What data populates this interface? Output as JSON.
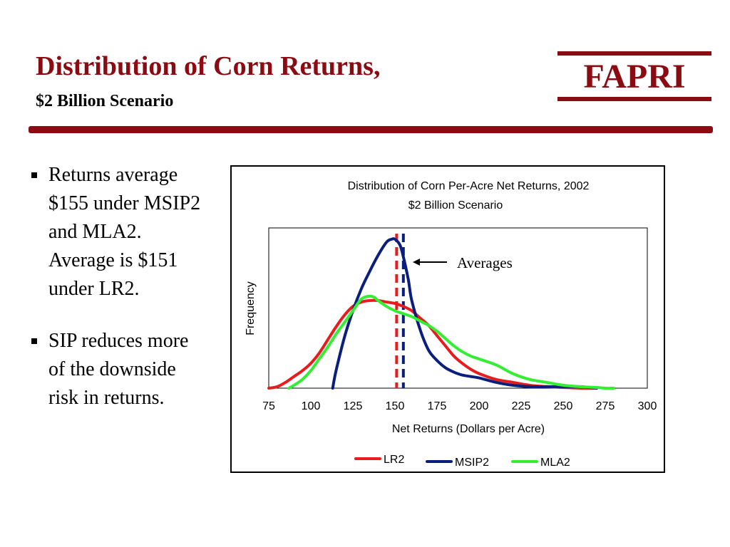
{
  "slide": {
    "title": "Distribution of Corn Returns,",
    "subtitle": "$2 Billion Scenario",
    "logo": "FAPRI"
  },
  "bullets": [
    "Returns average $155 under MSIP2 and MLA2. Average is $151 under LR2.",
    "SIP reduces more of the downside risk in returns."
  ],
  "colors": {
    "brand": "#8b0b12",
    "LR2": "#e81c1c",
    "MSIP2": "#0a1f7d",
    "MLA2": "#33ee33"
  },
  "chart_data": {
    "type": "line",
    "title": "Distribution of Corn Per-Acre Net Returns, 2002",
    "subtitle": "$2 Billion Scenario",
    "xlabel": "Net Returns (Dollars per Acre)",
    "ylabel": "Frequency",
    "xlim": [
      75,
      300
    ],
    "ylim": [
      0,
      1
    ],
    "xticks": [
      "75",
      "100",
      "125",
      "150",
      "175",
      "200",
      "225",
      "250",
      "275",
      "300"
    ],
    "grid": false,
    "legend_position": "bottom",
    "annotation": "Averages",
    "averages": [
      {
        "series": "LR2",
        "x": 151
      },
      {
        "series": "MSIP2",
        "x": 155
      }
    ],
    "series": [
      {
        "name": "LR2",
        "x": [
          75,
          80,
          85,
          90,
          95,
          100,
          105,
          110,
          115,
          120,
          125,
          130,
          135,
          140,
          145,
          150,
          155,
          160,
          165,
          170,
          175,
          180,
          185,
          190,
          195,
          200,
          210,
          220,
          230,
          240,
          250,
          260,
          270
        ],
        "y": [
          0.0,
          0.01,
          0.04,
          0.08,
          0.12,
          0.17,
          0.24,
          0.33,
          0.42,
          0.5,
          0.56,
          0.59,
          0.6,
          0.6,
          0.59,
          0.58,
          0.56,
          0.53,
          0.48,
          0.43,
          0.36,
          0.29,
          0.22,
          0.17,
          0.13,
          0.1,
          0.06,
          0.04,
          0.02,
          0.01,
          0.005,
          0.0,
          0.0
        ]
      },
      {
        "name": "MSIP2",
        "x": [
          113,
          115,
          120,
          125,
          130,
          135,
          140,
          145,
          148,
          150,
          153,
          155,
          158,
          160,
          165,
          170,
          175,
          180,
          185,
          190,
          195,
          200,
          210,
          220,
          230,
          240,
          250,
          260,
          265,
          270
        ],
        "y": [
          0.0,
          0.12,
          0.35,
          0.53,
          0.68,
          0.8,
          0.91,
          1.0,
          1.02,
          1.02,
          0.98,
          0.9,
          0.74,
          0.6,
          0.4,
          0.26,
          0.19,
          0.14,
          0.11,
          0.09,
          0.08,
          0.07,
          0.04,
          0.02,
          0.01,
          0.01,
          0.01,
          0.01,
          0.005,
          0.0
        ]
      },
      {
        "name": "MLA2",
        "x": [
          87,
          90,
          95,
          100,
          105,
          110,
          115,
          120,
          125,
          130,
          135,
          138,
          140,
          145,
          150,
          155,
          160,
          165,
          170,
          175,
          180,
          185,
          190,
          195,
          200,
          210,
          220,
          230,
          240,
          250,
          260,
          270,
          275,
          280
        ],
        "y": [
          0.0,
          0.02,
          0.06,
          0.12,
          0.2,
          0.28,
          0.37,
          0.45,
          0.53,
          0.61,
          0.63,
          0.62,
          0.6,
          0.56,
          0.53,
          0.51,
          0.49,
          0.46,
          0.43,
          0.39,
          0.34,
          0.29,
          0.25,
          0.22,
          0.2,
          0.16,
          0.1,
          0.06,
          0.04,
          0.02,
          0.01,
          0.005,
          0.0,
          0.0
        ]
      }
    ]
  }
}
